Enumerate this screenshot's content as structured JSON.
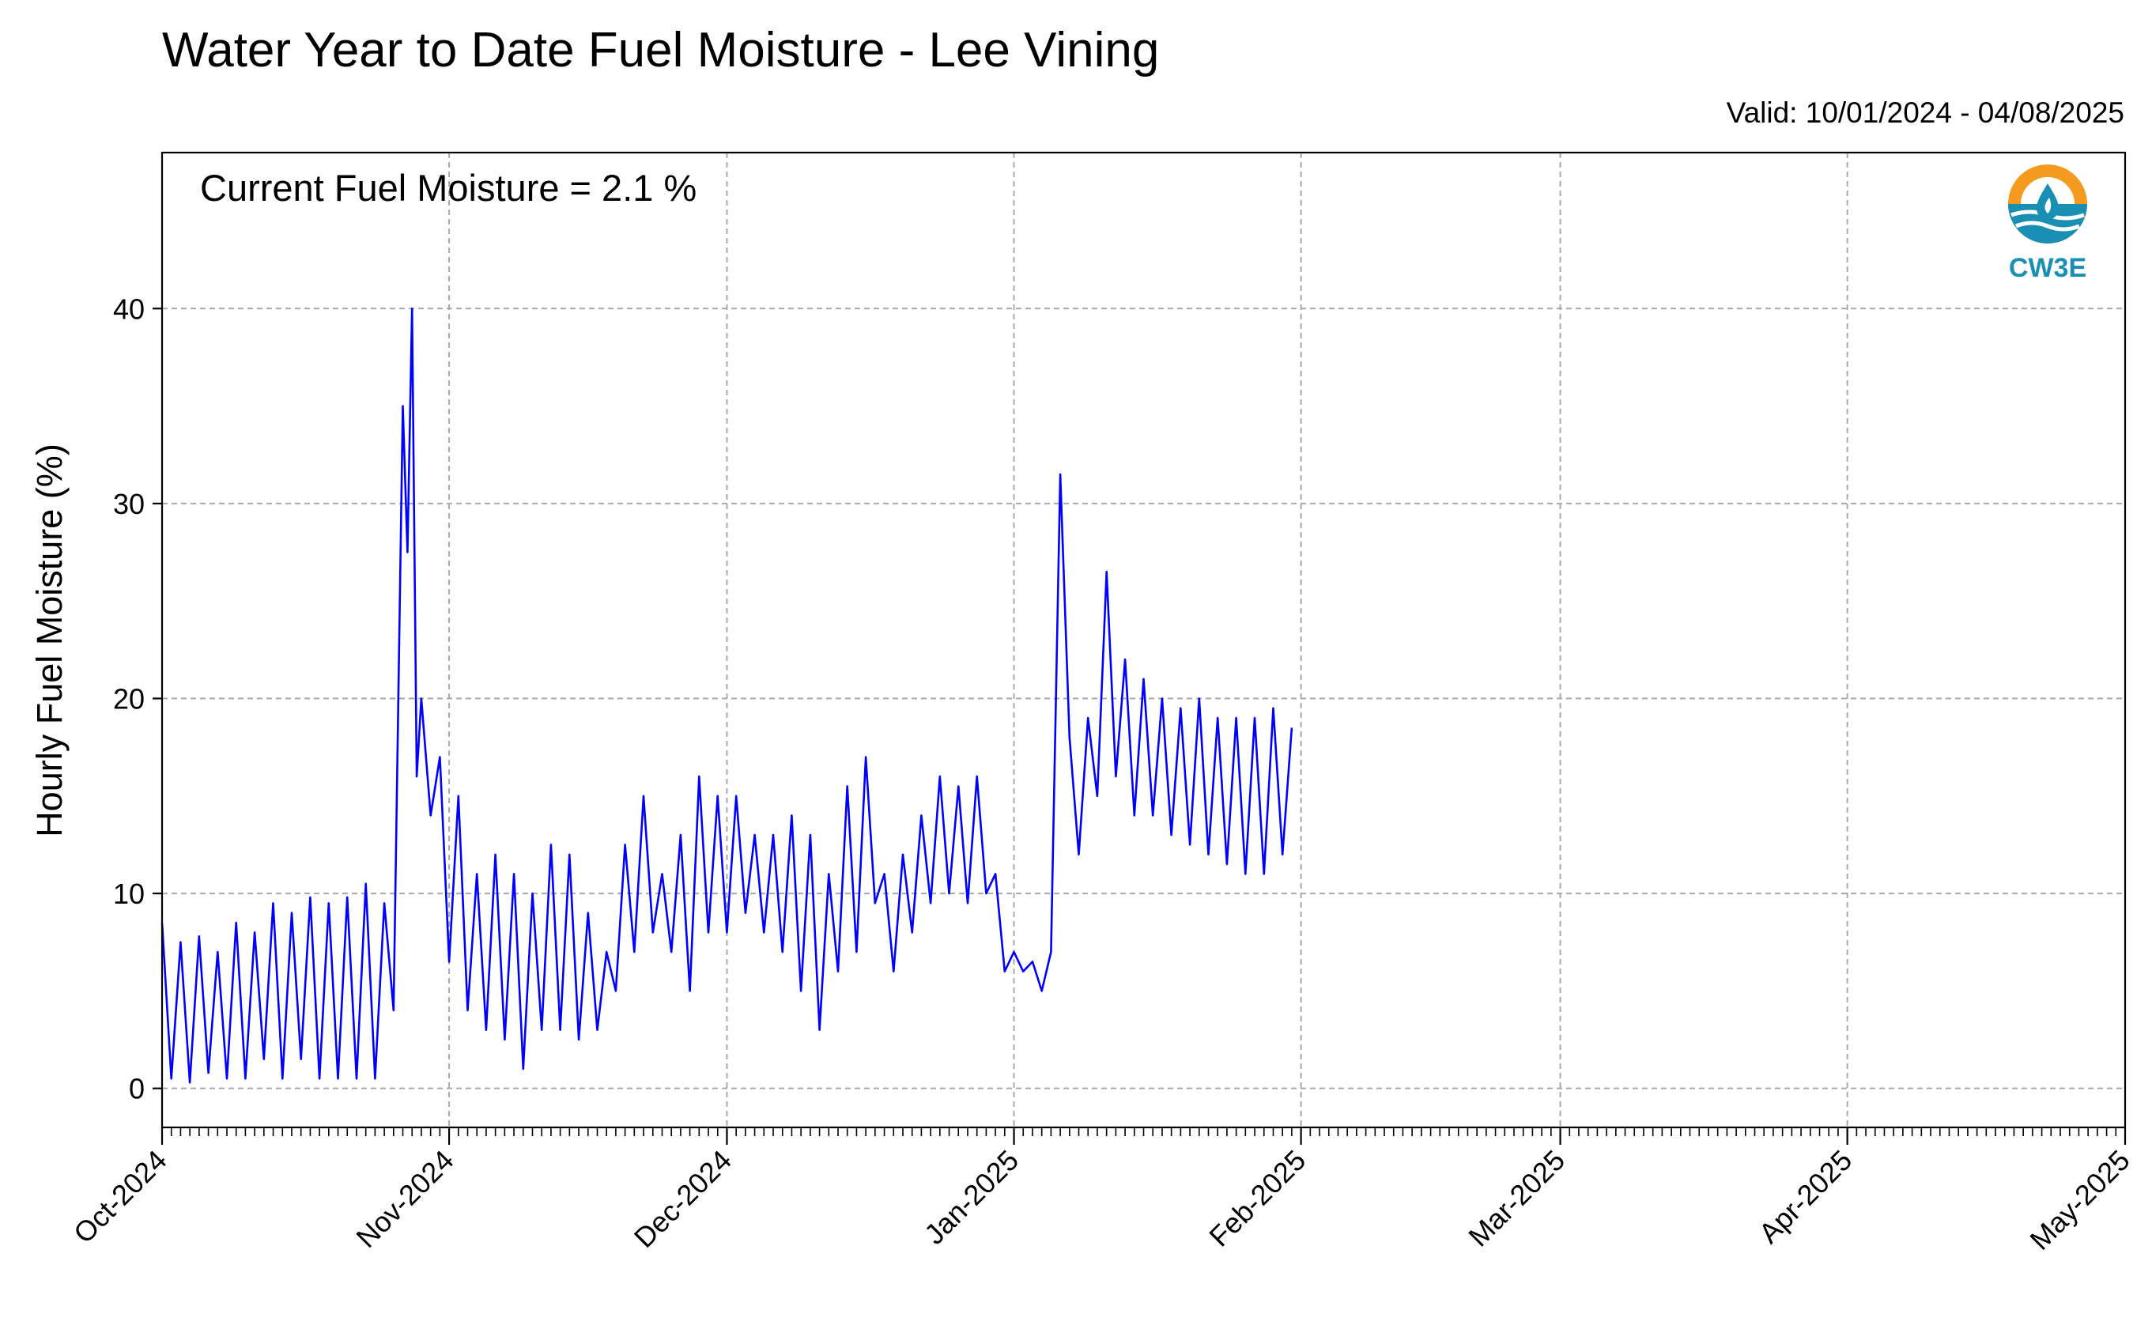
{
  "header": {
    "title": "Water Year to Date Fuel Moisture - Lee Vining",
    "valid": "Valid: 10/01/2024 - 04/08/2025"
  },
  "annotation": {
    "current": "Current Fuel Moisture = 2.1 %"
  },
  "logo": {
    "text": "CW3E",
    "ring_color": "#f39a1f",
    "wave_color": "#1a8fb4"
  },
  "colors": {
    "line": "#0000ff",
    "grid": "#a9a9a9"
  },
  "chart_data": {
    "type": "line",
    "title": "Water Year to Date Fuel Moisture - Lee Vining",
    "xlabel": "",
    "ylabel": "Hourly Fuel Moisture (%)",
    "ylim": [
      -2,
      48
    ],
    "xlim": [
      "2024-10-01",
      "2025-05-01"
    ],
    "y_ticks": [
      0,
      10,
      20,
      30,
      40
    ],
    "x_ticks": [
      "Oct-2024",
      "Nov-2024",
      "Dec-2024",
      "Jan-2025",
      "Feb-2025",
      "Mar-2025",
      "Apr-2025",
      "May-2025"
    ],
    "grid": true,
    "series": [
      {
        "color": "#0000ff",
        "points": [
          [
            "2024-10-01",
            8.5
          ],
          [
            "2024-10-02",
            0.5
          ],
          [
            "2024-10-03",
            7.5
          ],
          [
            "2024-10-04",
            0.3
          ],
          [
            "2024-10-05",
            7.8
          ],
          [
            "2024-10-06",
            0.8
          ],
          [
            "2024-10-07",
            7.0
          ],
          [
            "2024-10-08",
            0.5
          ],
          [
            "2024-10-09",
            8.5
          ],
          [
            "2024-10-10",
            0.5
          ],
          [
            "2024-10-11",
            8.0
          ],
          [
            "2024-10-12",
            1.5
          ],
          [
            "2024-10-13",
            9.5
          ],
          [
            "2024-10-14",
            0.5
          ],
          [
            "2024-10-15",
            9.0
          ],
          [
            "2024-10-16",
            1.5
          ],
          [
            "2024-10-17",
            9.8
          ],
          [
            "2024-10-18",
            0.5
          ],
          [
            "2024-10-19",
            9.5
          ],
          [
            "2024-10-20",
            0.5
          ],
          [
            "2024-10-21",
            9.8
          ],
          [
            "2024-10-22",
            0.5
          ],
          [
            "2024-10-23",
            10.5
          ],
          [
            "2024-10-24",
            0.5
          ],
          [
            "2024-10-25",
            9.5
          ],
          [
            "2024-10-26",
            4.0
          ],
          [
            "2024-10-27",
            35.0
          ],
          [
            "2024-10-27T12",
            27.5
          ],
          [
            "2024-10-28",
            40.0
          ],
          [
            "2024-10-28T12",
            16.0
          ],
          [
            "2024-10-29",
            20.0
          ],
          [
            "2024-10-30",
            14.0
          ],
          [
            "2024-10-31",
            17.0
          ],
          [
            "2024-11-01",
            6.5
          ],
          [
            "2024-11-02",
            15.0
          ],
          [
            "2024-11-03",
            4.0
          ],
          [
            "2024-11-04",
            11.0
          ],
          [
            "2024-11-05",
            3.0
          ],
          [
            "2024-11-06",
            12.0
          ],
          [
            "2024-11-07",
            2.5
          ],
          [
            "2024-11-08",
            11.0
          ],
          [
            "2024-11-09",
            1.0
          ],
          [
            "2024-11-10",
            10.0
          ],
          [
            "2024-11-11",
            3.0
          ],
          [
            "2024-11-12",
            12.5
          ],
          [
            "2024-11-13",
            3.0
          ],
          [
            "2024-11-14",
            12.0
          ],
          [
            "2024-11-15",
            2.5
          ],
          [
            "2024-11-16",
            9.0
          ],
          [
            "2024-11-17",
            3.0
          ],
          [
            "2024-11-18",
            7.0
          ],
          [
            "2024-11-19",
            5.0
          ],
          [
            "2024-11-20",
            12.5
          ],
          [
            "2024-11-21",
            7.0
          ],
          [
            "2024-11-22",
            15.0
          ],
          [
            "2024-11-23",
            8.0
          ],
          [
            "2024-11-24",
            11.0
          ],
          [
            "2024-11-25",
            7.0
          ],
          [
            "2024-11-26",
            13.0
          ],
          [
            "2024-11-27",
            5.0
          ],
          [
            "2024-11-28",
            16.0
          ],
          [
            "2024-11-29",
            8.0
          ],
          [
            "2024-11-30",
            15.0
          ],
          [
            "2024-12-01",
            8.0
          ],
          [
            "2024-12-02",
            15.0
          ],
          [
            "2024-12-03",
            9.0
          ],
          [
            "2024-12-04",
            13.0
          ],
          [
            "2024-12-05",
            8.0
          ],
          [
            "2024-12-06",
            13.0
          ],
          [
            "2024-12-07",
            7.0
          ],
          [
            "2024-12-08",
            14.0
          ],
          [
            "2024-12-09",
            5.0
          ],
          [
            "2024-12-10",
            13.0
          ],
          [
            "2024-12-11",
            3.0
          ],
          [
            "2024-12-12",
            11.0
          ],
          [
            "2024-12-13",
            6.0
          ],
          [
            "2024-12-14",
            15.5
          ],
          [
            "2024-12-15",
            7.0
          ],
          [
            "2024-12-16",
            17.0
          ],
          [
            "2024-12-17",
            9.5
          ],
          [
            "2024-12-18",
            11.0
          ],
          [
            "2024-12-19",
            6.0
          ],
          [
            "2024-12-20",
            12.0
          ],
          [
            "2024-12-21",
            8.0
          ],
          [
            "2024-12-22",
            14.0
          ],
          [
            "2024-12-23",
            9.5
          ],
          [
            "2024-12-24",
            16.0
          ],
          [
            "2024-12-25",
            10.0
          ],
          [
            "2024-12-26",
            15.5
          ],
          [
            "2024-12-27",
            9.5
          ],
          [
            "2024-12-28",
            16.0
          ],
          [
            "2024-12-29",
            10.0
          ],
          [
            "2024-12-30",
            11.0
          ],
          [
            "2024-12-31",
            6.0
          ],
          [
            "2025-01-01",
            7.0
          ],
          [
            "2025-01-02",
            6.0
          ],
          [
            "2025-01-03",
            6.5
          ],
          [
            "2025-01-04",
            5.0
          ],
          [
            "2025-01-05",
            7.0
          ],
          [
            "2025-01-06",
            31.5
          ],
          [
            "2025-01-07",
            18.0
          ],
          [
            "2025-01-08",
            12.0
          ],
          [
            "2025-01-09",
            19.0
          ],
          [
            "2025-01-10",
            15.0
          ],
          [
            "2025-01-11",
            26.5
          ],
          [
            "2025-01-12",
            16.0
          ],
          [
            "2025-01-13",
            22.0
          ],
          [
            "2025-01-14",
            14.0
          ],
          [
            "2025-01-15",
            21.0
          ],
          [
            "2025-01-16",
            14.0
          ],
          [
            "2025-01-17",
            20.0
          ],
          [
            "2025-01-18",
            13.0
          ],
          [
            "2025-01-19",
            19.5
          ],
          [
            "2025-01-20",
            12.5
          ],
          [
            "2025-01-21",
            20.0
          ],
          [
            "2025-01-22",
            12.0
          ],
          [
            "2025-01-23",
            19.0
          ],
          [
            "2025-01-24",
            11.5
          ],
          [
            "2025-01-25",
            19.0
          ],
          [
            "2025-01-26",
            11.0
          ],
          [
            "2025-01-27",
            19.0
          ],
          [
            "2025-01-28",
            11.0
          ],
          [
            "2025-01-29",
            19.5
          ],
          [
            "2025-01-30",
            12.0
          ],
          [
            "2025-01-31",
            18.5
          ]
        ]
      }
    ]
  }
}
